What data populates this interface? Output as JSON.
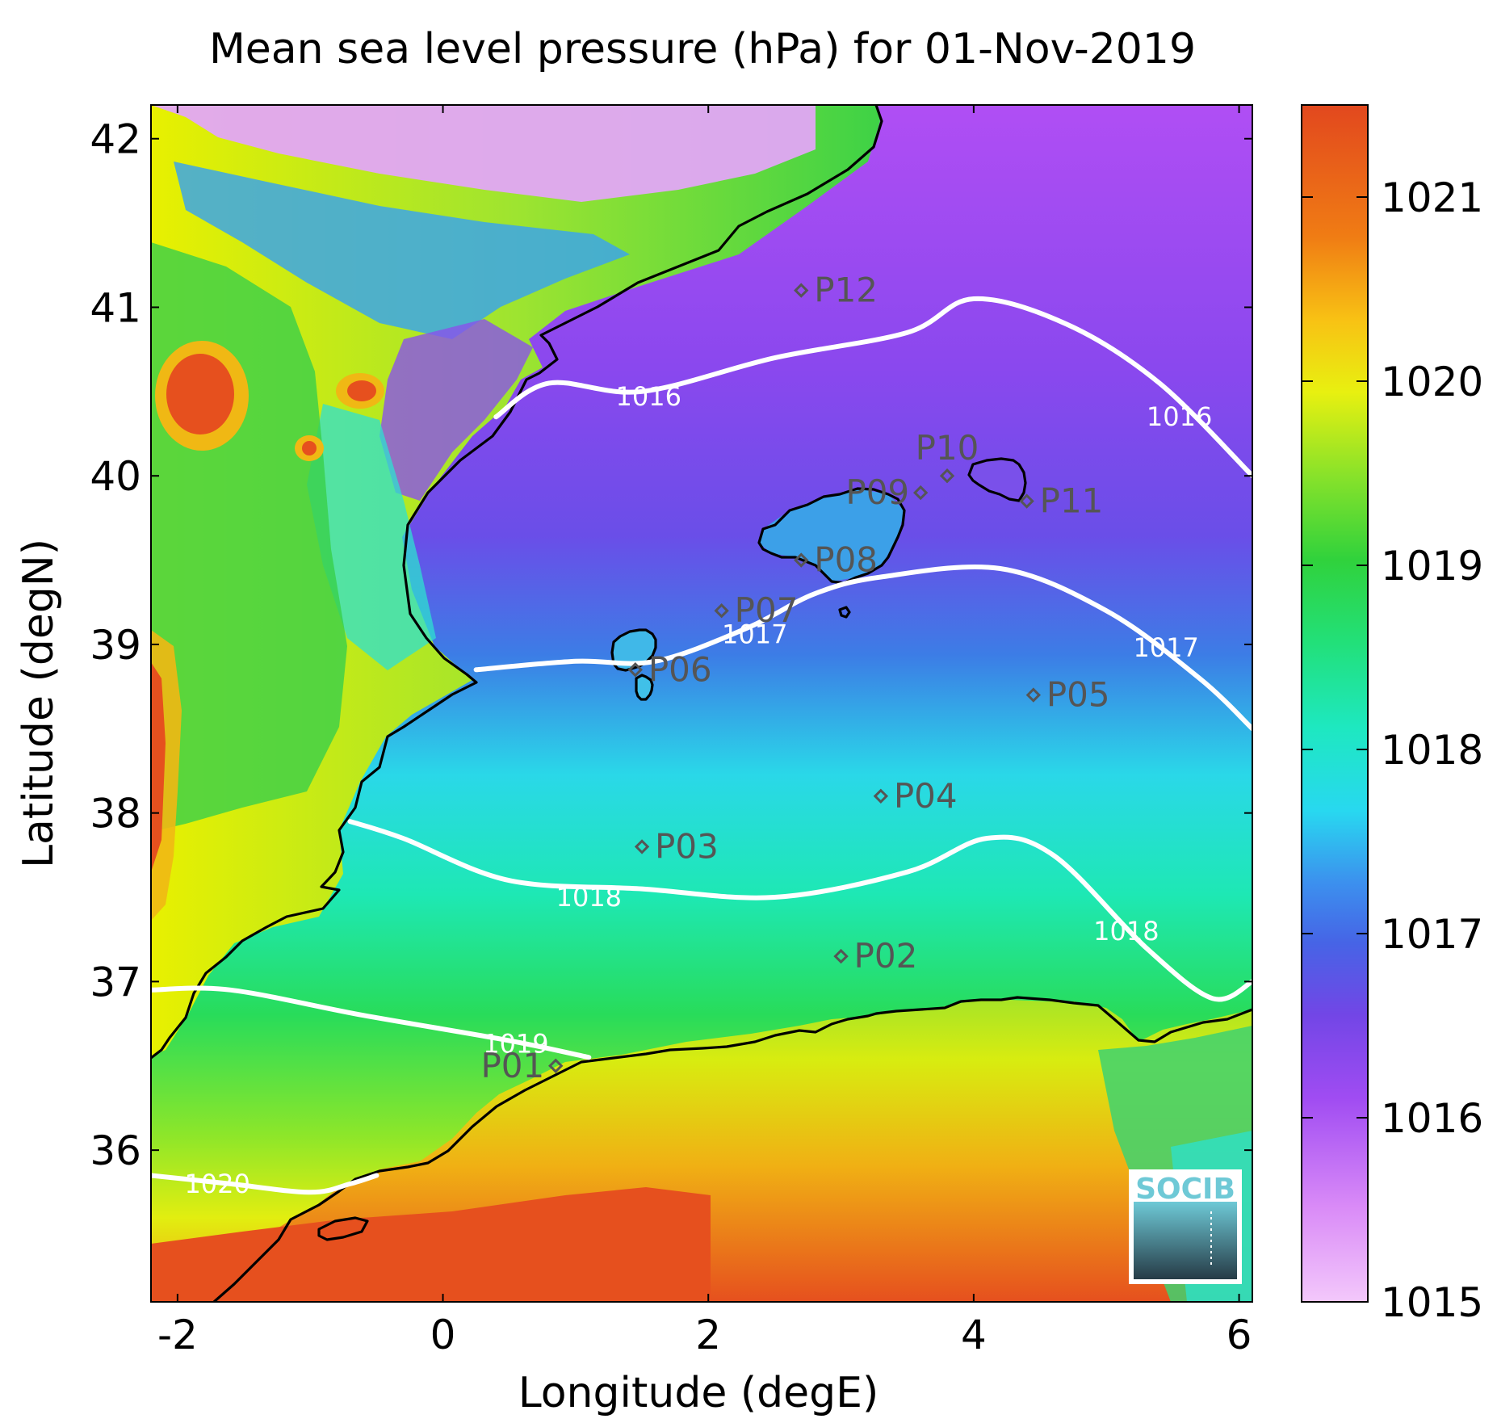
{
  "chart_data": {
    "type": "heatmap",
    "title": "Mean sea level pressure (hPa) for 01-Nov-2019",
    "xlabel": "Longitude (degE)",
    "ylabel": "Latitude (degN)",
    "xlim": [
      -2.2,
      6.1
    ],
    "ylim": [
      35.1,
      42.2
    ],
    "x_ticks": [
      -2,
      0,
      2,
      4,
      6
    ],
    "y_ticks": [
      36,
      37,
      38,
      39,
      40,
      41,
      42
    ],
    "colorbar": {
      "range": [
        1015,
        1021.5
      ],
      "ticks": [
        1015,
        1016,
        1017,
        1018,
        1019,
        1020,
        1021
      ]
    },
    "contours": [
      {
        "level": 1016,
        "label": "1016",
        "points": [
          [
            0.4,
            40.35
          ],
          [
            0.8,
            40.55
          ],
          [
            1.5,
            40.5
          ],
          [
            2.5,
            40.7
          ],
          [
            3.5,
            40.85
          ],
          [
            4.0,
            41.05
          ],
          [
            4.7,
            40.9
          ],
          [
            5.4,
            40.55
          ],
          [
            6.1,
            40.0
          ]
        ],
        "labels_at": [
          [
            1.55,
            40.47
          ],
          [
            5.55,
            40.35
          ]
        ]
      },
      {
        "level": 1017,
        "label": "1017",
        "points": [
          [
            0.25,
            38.85
          ],
          [
            1.0,
            38.9
          ],
          [
            1.6,
            38.9
          ],
          [
            2.3,
            39.1
          ],
          [
            2.8,
            39.3
          ],
          [
            3.3,
            39.4
          ],
          [
            4.2,
            39.45
          ],
          [
            5.0,
            39.2
          ],
          [
            5.7,
            38.8
          ],
          [
            6.1,
            38.5
          ]
        ],
        "labels_at": [
          [
            2.35,
            39.06
          ],
          [
            5.45,
            38.98
          ]
        ]
      },
      {
        "level": 1018,
        "label": "1018",
        "points": [
          [
            -0.7,
            37.95
          ],
          [
            -0.3,
            37.85
          ],
          [
            0.5,
            37.6
          ],
          [
            1.5,
            37.55
          ],
          [
            2.5,
            37.5
          ],
          [
            3.5,
            37.65
          ],
          [
            4.1,
            37.85
          ],
          [
            4.6,
            37.75
          ],
          [
            5.3,
            37.2
          ],
          [
            5.8,
            36.9
          ],
          [
            6.1,
            37.0
          ]
        ],
        "labels_at": [
          [
            1.1,
            37.5
          ],
          [
            5.15,
            37.3
          ]
        ]
      },
      {
        "level": 1019,
        "label": "1019",
        "points": [
          [
            -2.2,
            36.95
          ],
          [
            -1.6,
            36.95
          ],
          [
            -0.6,
            36.8
          ],
          [
            0.5,
            36.65
          ],
          [
            1.1,
            36.55
          ]
        ],
        "labels_at": [
          [
            0.55,
            36.63
          ]
        ]
      },
      {
        "level": 1020,
        "label": "1020",
        "points": [
          [
            -2.2,
            35.85
          ],
          [
            -1.6,
            35.8
          ],
          [
            -1.0,
            35.75
          ],
          [
            -0.7,
            35.8
          ],
          [
            -0.5,
            35.85
          ]
        ],
        "labels_at": [
          [
            -1.7,
            35.8
          ]
        ]
      }
    ],
    "stations": [
      {
        "name": "P01",
        "lon": 0.85,
        "lat": 36.5,
        "label_side": "left"
      },
      {
        "name": "P02",
        "lon": 3.0,
        "lat": 37.15,
        "label_side": "right"
      },
      {
        "name": "P03",
        "lon": 1.5,
        "lat": 37.8,
        "label_side": "right"
      },
      {
        "name": "P04",
        "lon": 3.3,
        "lat": 38.1,
        "label_side": "right"
      },
      {
        "name": "P05",
        "lon": 4.45,
        "lat": 38.7,
        "label_side": "right"
      },
      {
        "name": "P06",
        "lon": 1.45,
        "lat": 38.85,
        "label_side": "right"
      },
      {
        "name": "P07",
        "lon": 2.1,
        "lat": 39.2,
        "label_side": "right"
      },
      {
        "name": "P08",
        "lon": 2.7,
        "lat": 39.5,
        "label_side": "right"
      },
      {
        "name": "P09",
        "lon": 3.6,
        "lat": 39.9,
        "label_side": "left"
      },
      {
        "name": "P10",
        "lon": 3.8,
        "lat": 40.0,
        "label_side": "above"
      },
      {
        "name": "P11",
        "lon": 4.4,
        "lat": 39.85,
        "label_side": "right"
      },
      {
        "name": "P12",
        "lon": 2.7,
        "lat": 41.1,
        "label_side": "right"
      }
    ]
  },
  "logo": {
    "text": "SOCIB"
  },
  "colors": {
    "land_red": "#e6501e",
    "land_yellow": "#e8f000",
    "land_green": "#3ed246",
    "sea_cyan": "#28e0e6",
    "sea_blue": "#3c7de6",
    "sea_purple": "#9646ee",
    "sea_pink": "#e8a8f8",
    "coastline": "#000000",
    "contour": "#ffffff",
    "station": "#555555"
  }
}
